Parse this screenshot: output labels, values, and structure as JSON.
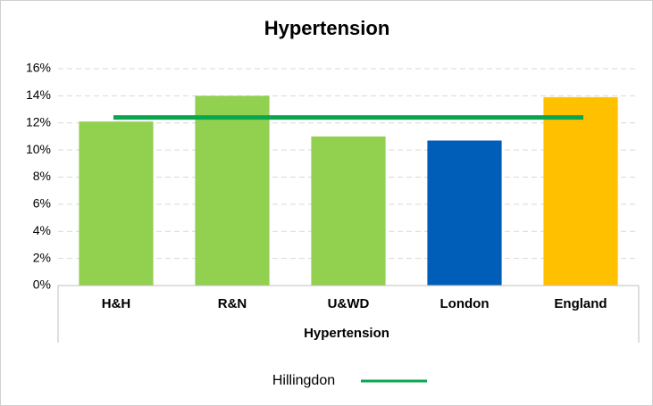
{
  "chart_data": {
    "type": "bar",
    "title": "Hypertension",
    "x_label": "Hypertension",
    "categories": [
      "H&H",
      "R&N",
      "U&WD",
      "London",
      "England"
    ],
    "values": [
      12.1,
      14.0,
      11.0,
      10.7,
      13.9
    ],
    "colors": [
      "#92d050",
      "#92d050",
      "#92d050",
      "#005eb8",
      "#ffc000"
    ],
    "lines": [
      {
        "name": "Hillingdon",
        "color": "#0aa64f",
        "value": 12.4
      }
    ],
    "ylim": [
      0,
      16
    ],
    "yticks": [
      {
        "value": 0,
        "label": "0%"
      },
      {
        "value": 2,
        "label": "2%"
      },
      {
        "value": 4,
        "label": "4%"
      },
      {
        "value": 6,
        "label": "6%"
      },
      {
        "value": 8,
        "label": "8%"
      },
      {
        "value": 10,
        "label": "10%"
      },
      {
        "value": 12,
        "label": "12%"
      },
      {
        "value": 14,
        "label": "14%"
      },
      {
        "value": 16,
        "label": "16%"
      }
    ],
    "grid": true
  }
}
